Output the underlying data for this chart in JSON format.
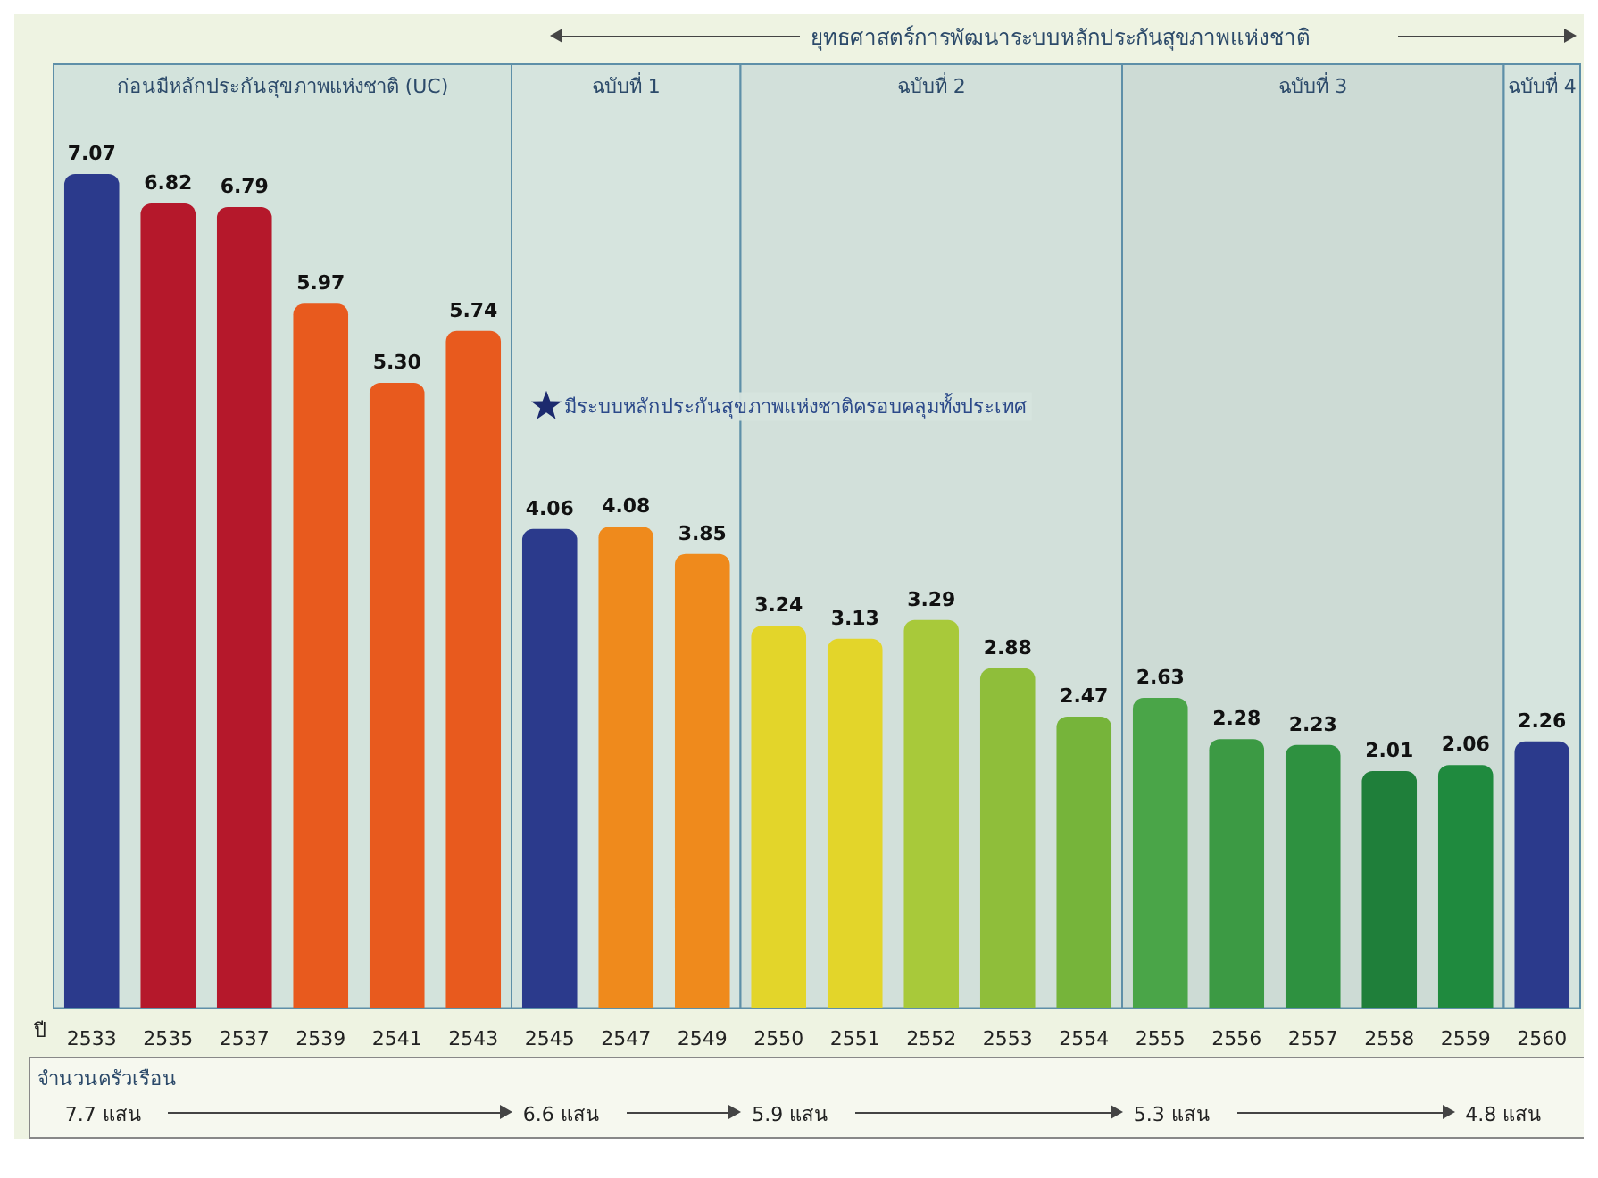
{
  "chart_data": {
    "type": "bar",
    "title": "ยุทธศาสตร์การพัฒนาระบบหลักประกันสุขภาพแห่งชาติ",
    "xlabel": "ปี",
    "categories": [
      "2533",
      "2535",
      "2537",
      "2539",
      "2541",
      "2543",
      "2545",
      "2547",
      "2549",
      "2550",
      "2551",
      "2552",
      "2553",
      "2554",
      "2555",
      "2556",
      "2557",
      "2558",
      "2559",
      "2560"
    ],
    "values": [
      7.07,
      6.82,
      6.79,
      5.97,
      5.3,
      5.74,
      4.06,
      4.08,
      3.85,
      3.24,
      3.13,
      3.29,
      2.88,
      2.47,
      2.63,
      2.28,
      2.23,
      2.01,
      2.06,
      2.26
    ],
    "colors": [
      "#2b3a8c",
      "#b5182b",
      "#b5182b",
      "#e85a1e",
      "#e85a1e",
      "#e85a1e",
      "#2b3a8c",
      "#ef8a1c",
      "#ef8a1c",
      "#e3d52a",
      "#e3d52a",
      "#a8c93a",
      "#8fbe3a",
      "#76b43a",
      "#4aa548",
      "#3c9a44",
      "#2e9140",
      "#1f7f3a",
      "#1f8a3e",
      "#2b3a8c"
    ],
    "value_labels": [
      "7.07",
      "6.82",
      "6.79",
      "5.97",
      "5.30",
      "5.74",
      "4.06",
      "4.08",
      "3.85",
      "3.24",
      "3.13",
      "3.29",
      "2.88",
      "2.47",
      "2.63",
      "2.28",
      "2.23",
      "2.01",
      "2.06",
      "2.26"
    ],
    "bands": [
      {
        "axis": "x",
        "from": "2533",
        "to": "2543",
        "label": "ก่อนมีหลักประกันสุขภาพแห่งชาติ (UC)",
        "color": "#d3e3dc"
      },
      {
        "axis": "x",
        "from": "2545",
        "to": "2549",
        "label": "ฉบับที่ 1",
        "color": "#d6e4de"
      },
      {
        "axis": "x",
        "from": "2550",
        "to": "2554",
        "label": "ฉบับที่ 2",
        "color": "#d2e0da"
      },
      {
        "axis": "x",
        "from": "2555",
        "to": "2559",
        "label": "ฉบับที่ 3",
        "color": "#cddbd5"
      },
      {
        "axis": "x",
        "from": "2560",
        "to": "2560",
        "label": "ฉบับที่ 4",
        "color": "#d6e4de"
      }
    ],
    "annotations": [
      {
        "text": "มีระบบหลักประกันสุขภาพแห่งชาติครอบคลุมทั้งประเทศ",
        "x": "2545",
        "y": 5.1
      },
      "จำนวนครัวเรือน",
      "7.7 แสน",
      "6.6 แสน",
      "5.9 แสน",
      "5.3 แสน",
      "4.8 แสน"
    ],
    "grid": false,
    "legend": false
  }
}
